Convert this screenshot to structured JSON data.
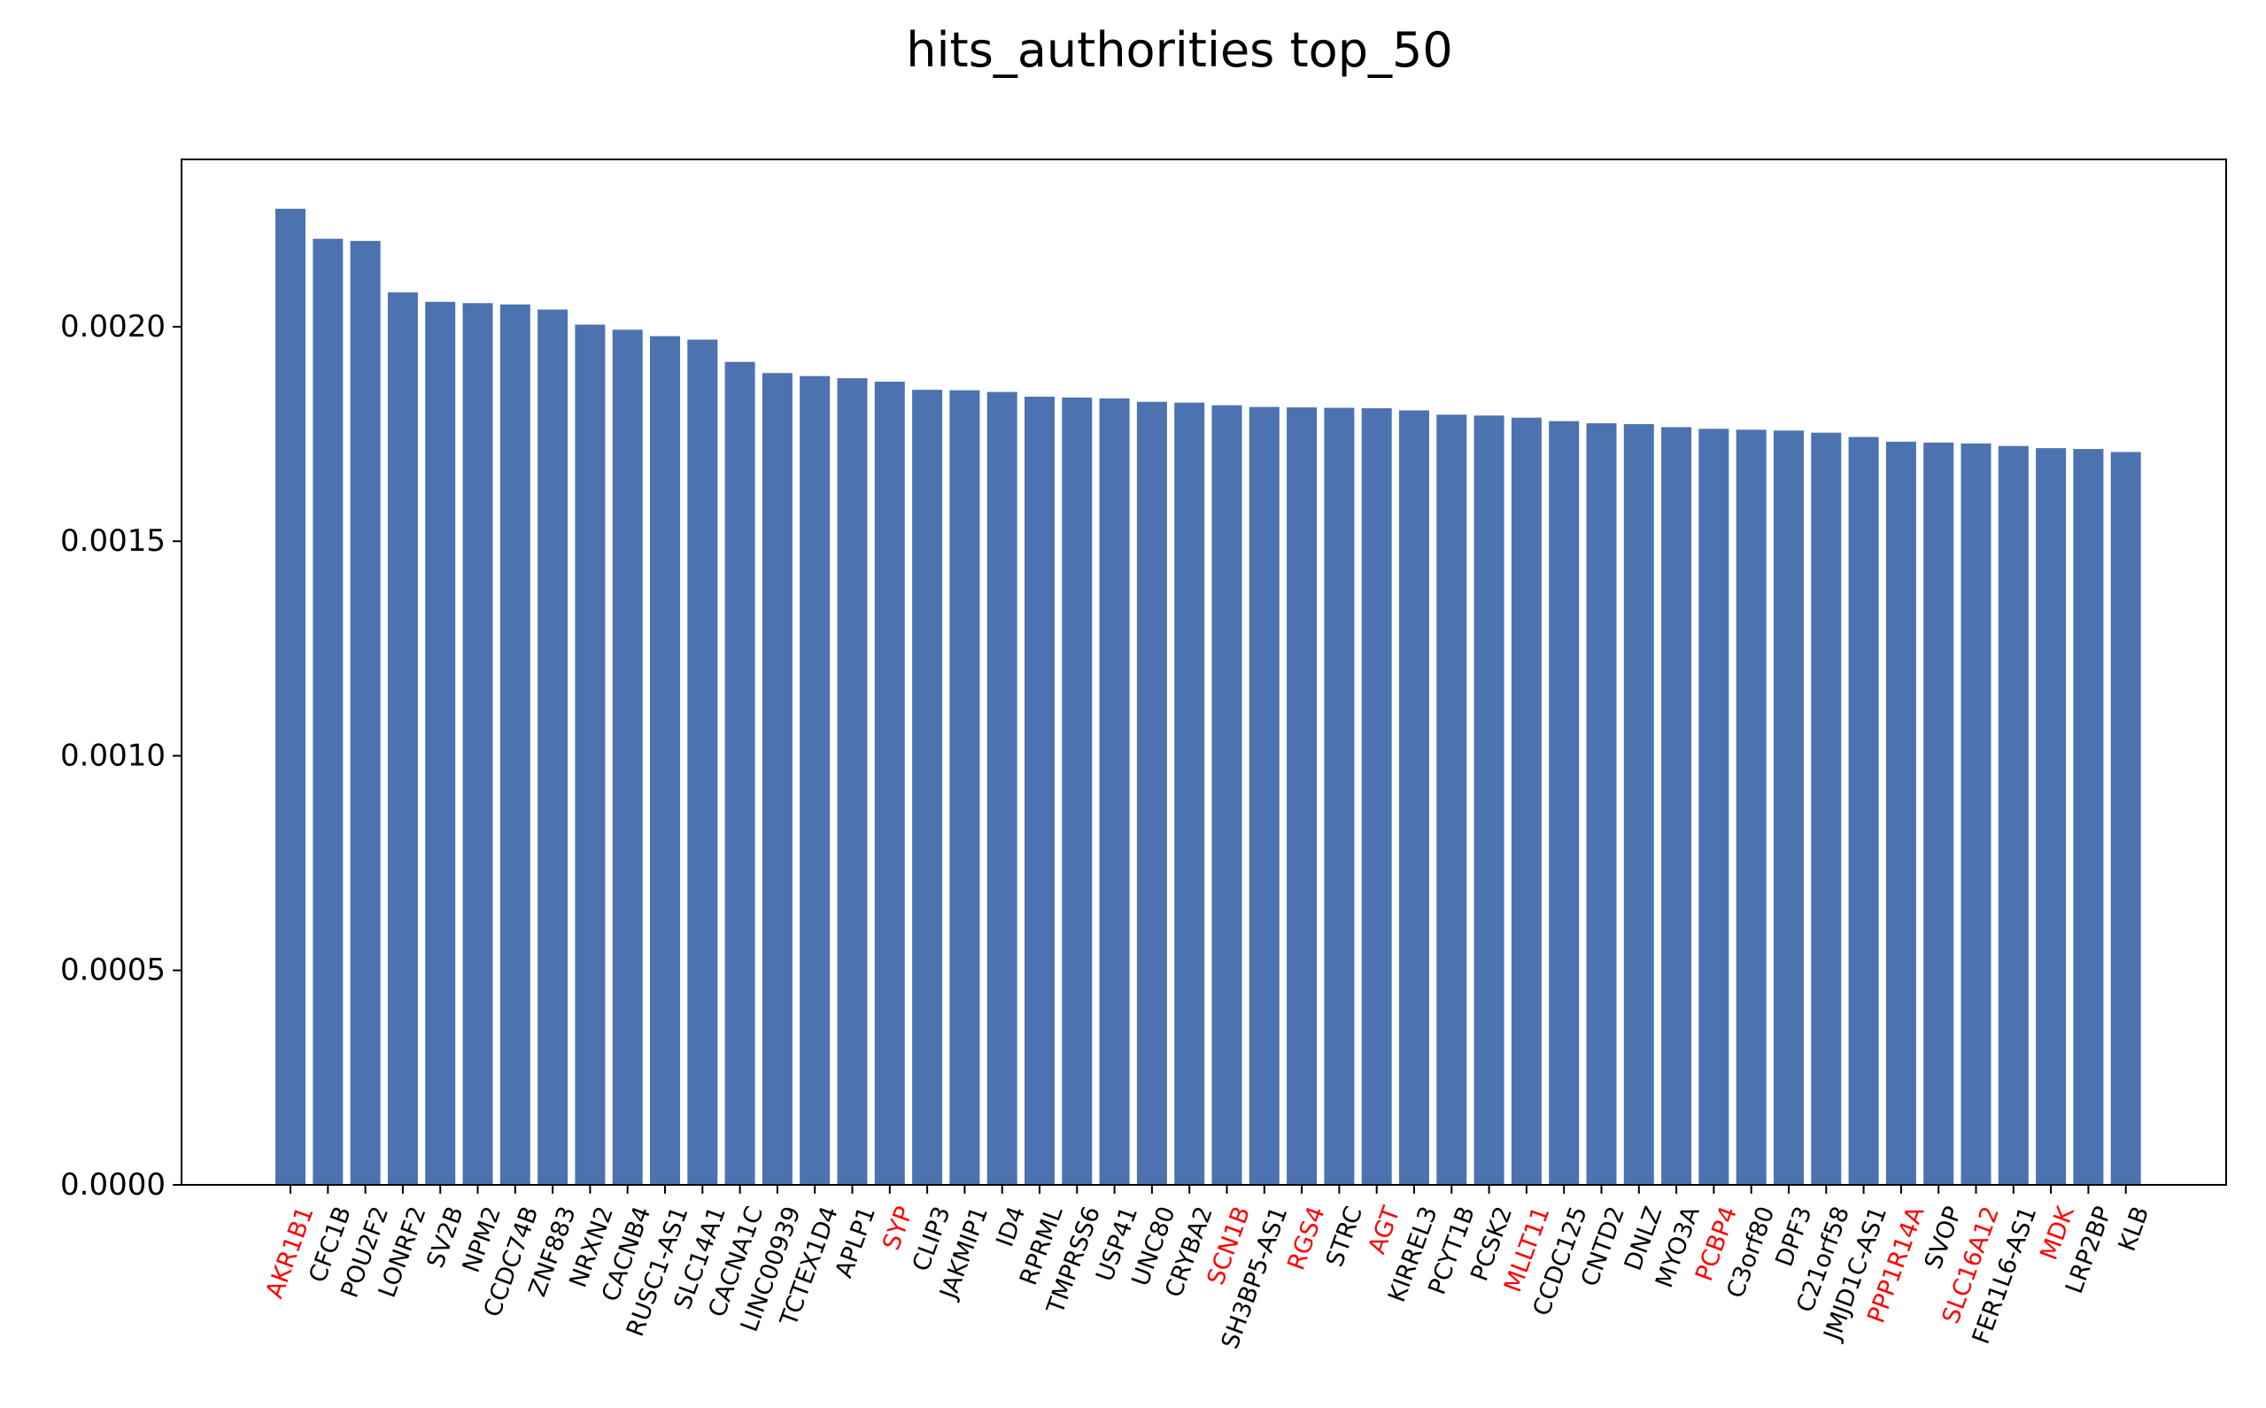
{
  "chart_data": {
    "type": "bar",
    "title": "hits_authorities top_50",
    "xlabel": "",
    "ylabel": "",
    "ylim": [
      0,
      0.00239
    ],
    "yticks": [
      0.0,
      0.0005,
      0.001,
      0.0015,
      0.002
    ],
    "ytick_labels": [
      "0.0000",
      "0.0005",
      "0.0010",
      "0.0015",
      "0.0020"
    ],
    "grid": false,
    "bar_color": "#4c72b0",
    "label_color_default": "#000000",
    "label_color_highlight": "#ff0000",
    "categories": [
      "AKR1B1",
      "CFC1B",
      "POU2F2",
      "LONRF2",
      "SV2B",
      "NPM2",
      "CCDC74B",
      "ZNF883",
      "NRXN2",
      "CACNB4",
      "RUSC1-AS1",
      "SLC14A1",
      "CACNA1C",
      "LINC00939",
      "TCTEX1D4",
      "APLP1",
      "SYP",
      "CLIP3",
      "JAKMIP1",
      "ID4",
      "RPRML",
      "TMPRSS6",
      "USP41",
      "UNC80",
      "CRYBA2",
      "SCN1B",
      "SH3BP5-AS1",
      "RGS4",
      "STRC",
      "AGT",
      "KIRREL3",
      "PCYT1B",
      "PCSK2",
      "MLLT11",
      "CCDC125",
      "CNTD2",
      "DNLZ",
      "MYO3A",
      "PCBP4",
      "C3orf80",
      "DPF3",
      "C21orf58",
      "JMJD1C-AS1",
      "PPP1R14A",
      "SVOP",
      "SLC16A12",
      "FER1L6-AS1",
      "MDK",
      "LRP2BP",
      "KLB"
    ],
    "values": [
      0.002275,
      0.002205,
      0.0022,
      0.00208,
      0.002058,
      0.002055,
      0.002052,
      0.00204,
      0.002005,
      0.001993,
      0.001978,
      0.00197,
      0.001918,
      0.001892,
      0.001885,
      0.00188,
      0.001872,
      0.001853,
      0.001852,
      0.001848,
      0.001837,
      0.001835,
      0.001833,
      0.001825,
      0.001823,
      0.001817,
      0.001813,
      0.001812,
      0.001811,
      0.00181,
      0.001805,
      0.001795,
      0.001793,
      0.001788,
      0.00178,
      0.001775,
      0.001773,
      0.001766,
      0.001762,
      0.00176,
      0.001758,
      0.001753,
      0.001743,
      0.001732,
      0.00173,
      0.001728,
      0.001722,
      0.001717,
      0.001715,
      0.001708
    ],
    "highlighted": [
      "AKR1B1",
      "SYP",
      "SCN1B",
      "RGS4",
      "AGT",
      "MLLT11",
      "PCBP4",
      "PPP1R14A",
      "SLC16A12",
      "MDK"
    ]
  }
}
